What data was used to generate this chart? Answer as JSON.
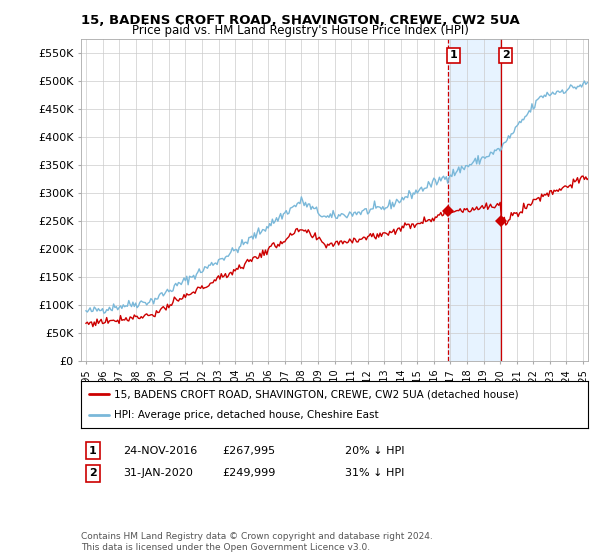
{
  "title": "15, BADENS CROFT ROAD, SHAVINGTON, CREWE, CW2 5UA",
  "subtitle": "Price paid vs. HM Land Registry's House Price Index (HPI)",
  "ylabel_ticks": [
    "£0",
    "£50K",
    "£100K",
    "£150K",
    "£200K",
    "£250K",
    "£300K",
    "£350K",
    "£400K",
    "£450K",
    "£500K",
    "£550K"
  ],
  "ytick_values": [
    0,
    50000,
    100000,
    150000,
    200000,
    250000,
    300000,
    350000,
    400000,
    450000,
    500000,
    550000
  ],
  "ylim": [
    0,
    575000
  ],
  "xlim_left": 1994.7,
  "xlim_right": 2025.3,
  "legend_entry1": "15, BADENS CROFT ROAD, SHAVINGTON, CREWE, CW2 5UA (detached house)",
  "legend_entry2": "HPI: Average price, detached house, Cheshire East",
  "annotation1_label": "1",
  "annotation1_date": "24-NOV-2016",
  "annotation1_price": "£267,995",
  "annotation1_hpi": "20% ↓ HPI",
  "annotation2_label": "2",
  "annotation2_date": "31-JAN-2020",
  "annotation2_price": "£249,999",
  "annotation2_hpi": "31% ↓ HPI",
  "footnote": "Contains HM Land Registry data © Crown copyright and database right 2024.\nThis data is licensed under the Open Government Licence v3.0.",
  "hpi_color": "#7ab8d9",
  "price_color": "#cc0000",
  "annotation_color": "#cc0000",
  "shade_color": "#ddeeff",
  "bg_color": "#ffffff",
  "grid_color": "#cccccc",
  "sale1_x": 2016.88,
  "sale1_y": 267995,
  "sale2_x": 2020.04,
  "sale2_y": 249999
}
